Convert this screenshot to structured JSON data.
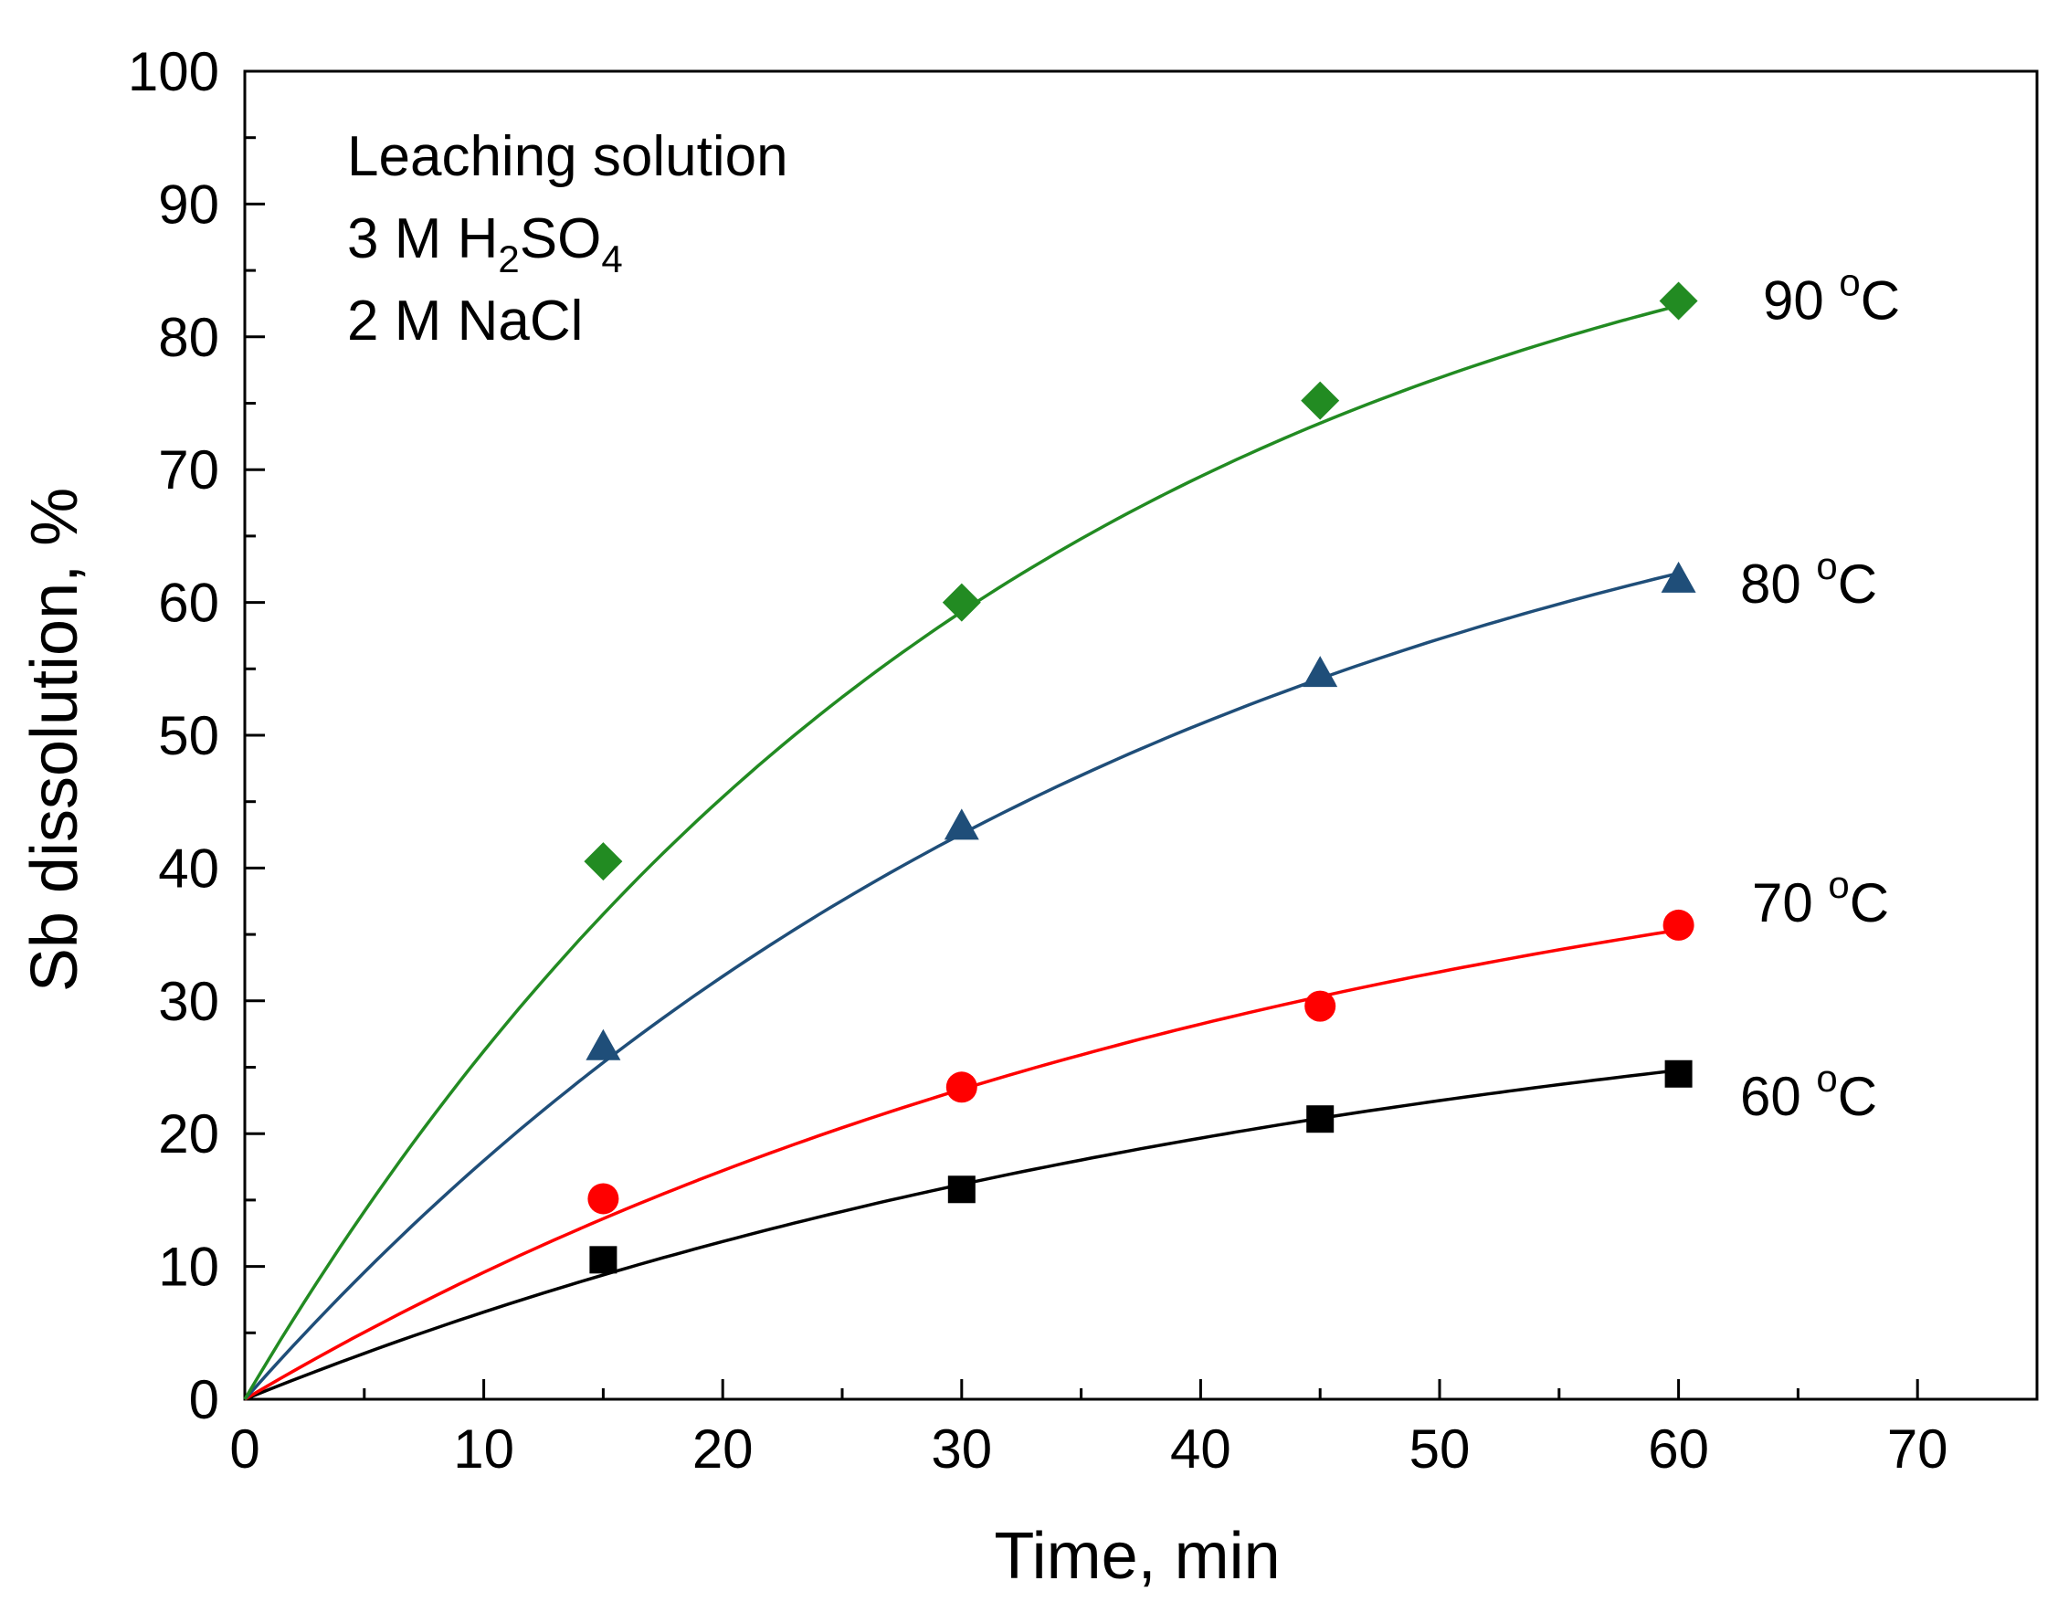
{
  "chart_data": {
    "type": "line",
    "xlabel": "Time, min",
    "ylabel": "Sb dissolution, %",
    "xlim": [
      0,
      75
    ],
    "ylim": [
      0,
      100
    ],
    "x_ticks": [
      0,
      10,
      20,
      30,
      40,
      50,
      60,
      70
    ],
    "y_ticks": [
      0,
      10,
      20,
      30,
      40,
      50,
      60,
      70,
      80,
      90,
      100
    ],
    "x_minor_step": 5,
    "y_minor_step": 5,
    "grid": false,
    "annotation": {
      "line1": "Leaching solution",
      "line2_prefix": "3 M H",
      "line2_sub1": "2",
      "line2_mid": "SO",
      "line2_sub2": "4",
      "line3": "2 M NaCl"
    },
    "series": [
      {
        "name": "60 °C",
        "label_num": "60 ",
        "label_sup": "o",
        "label_unit": "C",
        "marker": "square",
        "color": "#000000",
        "x": [
          15,
          30,
          45,
          60
        ],
        "y": [
          10.5,
          15.8,
          21.1,
          24.5
        ],
        "fit_k": 0.0211,
        "fit_a": 34.5
      },
      {
        "name": "70 °C",
        "label_num": "70 ",
        "label_sup": "o",
        "label_unit": "C",
        "marker": "circle",
        "color": "#ff0000",
        "x": [
          15,
          30,
          45,
          60
        ],
        "y": [
          15.1,
          23.5,
          29.6,
          35.7
        ],
        "fit_k": 0.0222,
        "fit_a": 48.0
      },
      {
        "name": "80 °C",
        "label_num": "80 ",
        "label_sup": "o",
        "label_unit": "C",
        "marker": "triangle",
        "color": "#1f4e79",
        "x": [
          15,
          30,
          45,
          60
        ],
        "y": [
          26.5,
          43.1,
          54.6,
          61.7
        ],
        "fit_k": 0.0258,
        "fit_a": 79.0
      },
      {
        "name": "90 °C",
        "label_num": "90 ",
        "label_sup": "o",
        "label_unit": "C",
        "marker": "diamond",
        "color": "#228b22",
        "x": [
          15,
          30,
          45,
          60
        ],
        "y": [
          40.5,
          60.0,
          75.2,
          82.7
        ],
        "fit_k": 0.0315,
        "fit_a": 97.0
      }
    ]
  }
}
